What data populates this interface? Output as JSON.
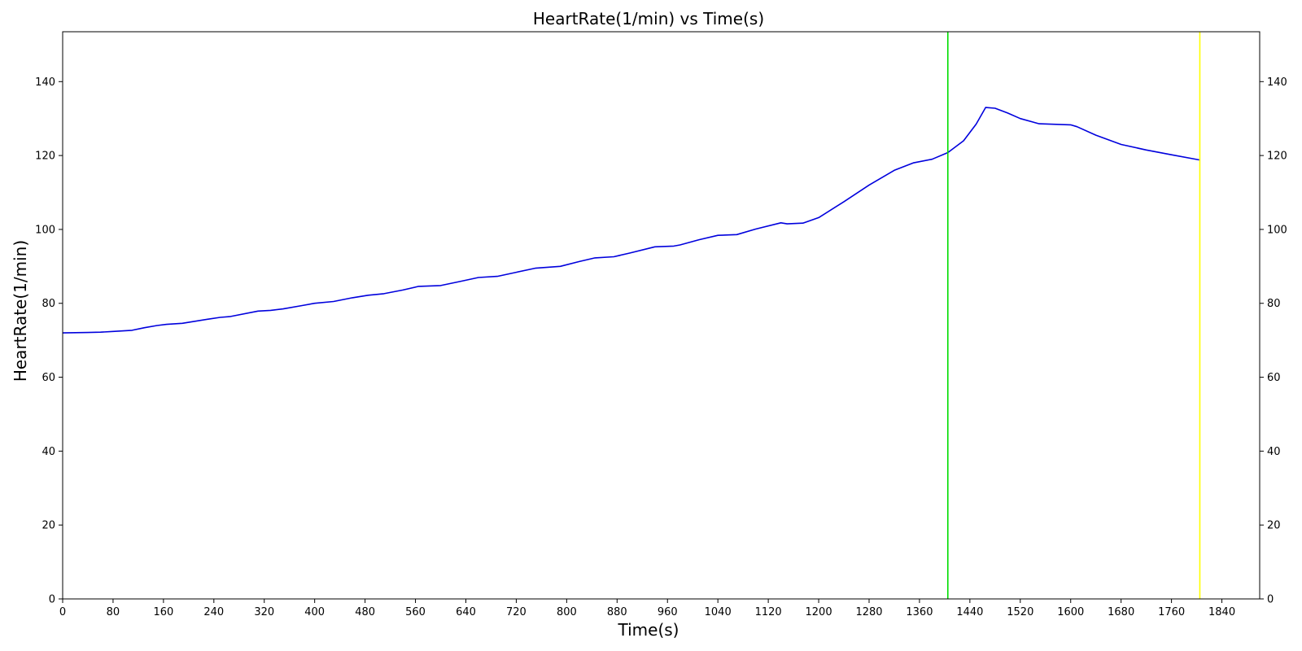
{
  "chart_data": {
    "type": "line",
    "title": "HeartRate(1/min) vs Time(s)",
    "xlabel": "Time(s)",
    "ylabel": "HeartRate(1/min)",
    "xlim": [
      0,
      1900
    ],
    "ylim": [
      0,
      153.5
    ],
    "x_ticks": [
      0,
      80,
      160,
      240,
      320,
      400,
      480,
      560,
      640,
      720,
      800,
      880,
      960,
      1040,
      1120,
      1200,
      1280,
      1360,
      1440,
      1520,
      1600,
      1680,
      1760,
      1840
    ],
    "y_ticks": [
      0,
      20,
      40,
      60,
      80,
      100,
      120,
      140
    ],
    "grid": false,
    "legend": "none",
    "secondary_y_axis": true,
    "series": [
      {
        "color": "#0000dd",
        "x": [
          0,
          40,
          60,
          80,
          110,
          130,
          150,
          165,
          190,
          230,
          250,
          265,
          310,
          330,
          350,
          380,
          400,
          430,
          460,
          485,
          510,
          540,
          565,
          600,
          630,
          660,
          690,
          720,
          750,
          790,
          820,
          845,
          875,
          900,
          940,
          970,
          980,
          1010,
          1040,
          1070,
          1100,
          1140,
          1150,
          1175,
          1200,
          1240,
          1280,
          1320,
          1350,
          1380,
          1405,
          1430,
          1450,
          1465,
          1480,
          1500,
          1520,
          1550,
          1600,
          1610,
          1640,
          1680,
          1720,
          1760,
          1805
        ],
        "values": [
          72.0,
          72.1,
          72.2,
          72.4,
          72.7,
          73.4,
          74.0,
          74.3,
          74.6,
          75.7,
          76.2,
          76.4,
          77.9,
          78.1,
          78.5,
          79.4,
          80.0,
          80.5,
          81.5,
          82.2,
          82.6,
          83.6,
          84.6,
          84.8,
          85.9,
          87.0,
          87.3,
          88.4,
          89.5,
          90.0,
          91.3,
          92.3,
          92.6,
          93.6,
          95.3,
          95.5,
          95.8,
          97.2,
          98.4,
          98.6,
          100.1,
          101.8,
          101.5,
          101.7,
          103.2,
          107.5,
          112.0,
          116.0,
          118.0,
          119.0,
          120.8,
          124.0,
          128.5,
          133.0,
          132.8,
          131.5,
          130.0,
          128.6,
          128.3,
          127.8,
          125.5,
          123.0,
          121.5,
          120.2,
          118.8
        ]
      }
    ],
    "vertical_lines": [
      {
        "x": 1405,
        "color": "#00dd00"
      },
      {
        "x": 1805,
        "color": "#ffff00"
      }
    ]
  }
}
